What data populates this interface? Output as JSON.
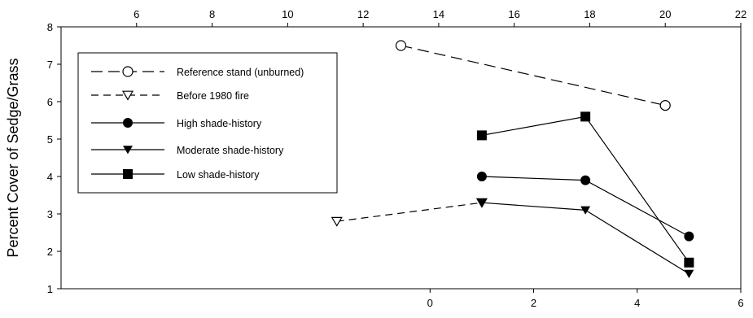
{
  "chart_data": {
    "type": "line",
    "title": "",
    "ylabel": "Percent Cover of Sedge/Grass",
    "ylim": [
      1,
      8
    ],
    "yticks": [
      1,
      2,
      3,
      4,
      5,
      6,
      7,
      8
    ],
    "top_axis": {
      "range": [
        4,
        22
      ],
      "ticks": [
        6,
        8,
        10,
        12,
        14,
        16,
        18,
        20,
        22
      ]
    },
    "bottom_axis": {
      "range": [
        -7.125,
        6
      ],
      "ticks": [
        0,
        2,
        4,
        6
      ]
    },
    "grid": false,
    "legend_position": "upper-left",
    "series": [
      {
        "name": "Reference stand (unburned)",
        "axis": "top",
        "line": "long-dash",
        "marker": "open-circle",
        "x": [
          13,
          20
        ],
        "y": [
          7.5,
          5.9
        ]
      },
      {
        "name": "Before 1980 fire",
        "axis": "bottom",
        "line": "dash",
        "marker": "open-triangle-down",
        "x": [
          -1.8,
          1
        ],
        "y": [
          2.8,
          3.3
        ]
      },
      {
        "name": "High shade-history",
        "axis": "bottom",
        "line": "solid",
        "marker": "filled-circle",
        "x": [
          1,
          3,
          5
        ],
        "y": [
          4.0,
          3.9,
          2.4
        ]
      },
      {
        "name": "Moderate shade-history",
        "axis": "bottom",
        "line": "solid",
        "marker": "filled-triangle-down",
        "x": [
          1,
          3,
          5
        ],
        "y": [
          3.3,
          3.1,
          1.4
        ]
      },
      {
        "name": "Low shade-history",
        "axis": "bottom",
        "line": "solid",
        "marker": "filled-square",
        "x": [
          1,
          3,
          5
        ],
        "y": [
          5.1,
          5.6,
          1.7
        ]
      }
    ]
  }
}
